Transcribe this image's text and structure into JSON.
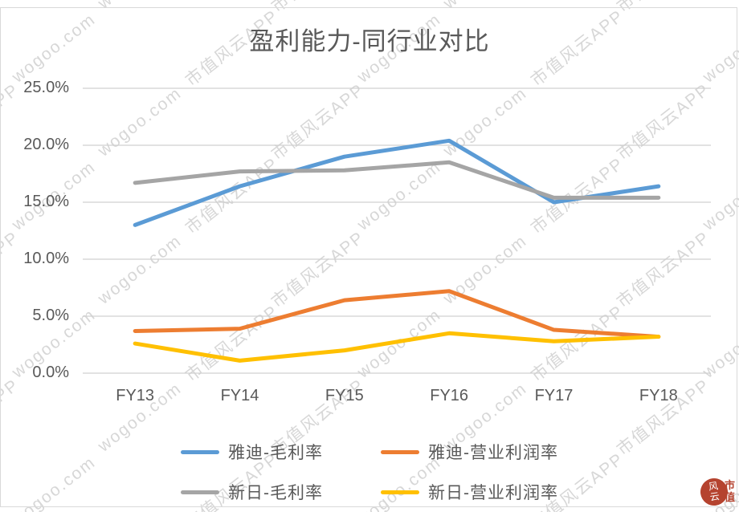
{
  "title": "盈利能力-同行业对比",
  "watermark": {
    "texts": [
      "市值风云APP",
      "wogoo.com"
    ],
    "color": "#d7d7d7"
  },
  "logo": {
    "seal_text": "风云",
    "side_text": "市值",
    "color": "#b5432f"
  },
  "colors": {
    "grid": "#d0d0d0",
    "axis_text": "#595959",
    "background": "#ffffff"
  },
  "chart_data": {
    "type": "line",
    "title": "盈利能力-同行业对比",
    "categories": [
      "FY13",
      "FY14",
      "FY15",
      "FY16",
      "FY17",
      "FY18"
    ],
    "xlabel": "",
    "ylabel": "",
    "ylim": [
      0,
      25
    ],
    "grid": true,
    "legend_position": "bottom",
    "y_ticks": {
      "values": [
        25,
        20,
        15,
        10,
        5,
        0
      ],
      "labels": [
        "25.0%",
        "20.0%",
        "15.0%",
        "10.0%",
        "5.0%",
        "0.0%"
      ]
    },
    "unit": "percent",
    "series": [
      {
        "name": "雅迪-毛利率",
        "color": "#5B9BD5",
        "values": [
          13.0,
          16.4,
          19.0,
          20.4,
          15.0,
          16.4
        ]
      },
      {
        "name": "雅迪-营业利润率",
        "color": "#ED7D31",
        "values": [
          3.7,
          3.9,
          6.4,
          7.2,
          3.8,
          3.2
        ]
      },
      {
        "name": "新日-毛利率",
        "color": "#A5A5A5",
        "values": [
          16.7,
          17.7,
          17.8,
          18.5,
          15.4,
          15.4
        ]
      },
      {
        "name": "新日-营业利润率",
        "color": "#FFC000",
        "values": [
          2.6,
          1.1,
          2.0,
          3.5,
          2.8,
          3.2
        ]
      }
    ]
  }
}
